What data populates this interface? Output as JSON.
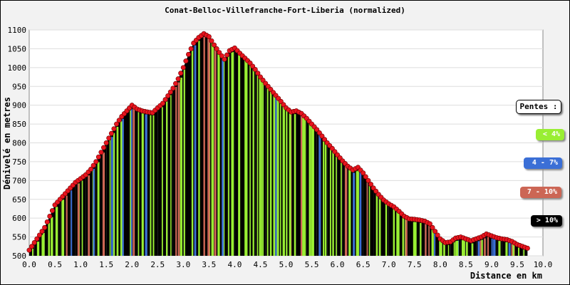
{
  "chart_data": {
    "type": "area",
    "title": "Conat-Belloc-Villefranche-Fort-Liberia (normalized)",
    "xlabel": "Distance en km",
    "ylabel": "Dénivelé en metres",
    "xlim": [
      0,
      10
    ],
    "ylim": [
      500,
      1100
    ],
    "x_ticks": [
      "0.0",
      "0.5",
      "1.0",
      "1.5",
      "2.0",
      "2.5",
      "3.0",
      "3.5",
      "4.0",
      "4.5",
      "5.0",
      "5.5",
      "6.0",
      "6.5",
      "7.0",
      "7.5",
      "8.0",
      "8.5",
      "9.0",
      "9.5",
      "10.0"
    ],
    "y_ticks": [
      "500",
      "550",
      "600",
      "650",
      "700",
      "750",
      "800",
      "850",
      "900",
      "950",
      "1000",
      "1050",
      "1100"
    ],
    "grid": "horizontal",
    "legend_placement": "right",
    "x": [
      0.0,
      0.1,
      0.2,
      0.3,
      0.4,
      0.5,
      0.6,
      0.7,
      0.8,
      0.9,
      1.0,
      1.1,
      1.2,
      1.3,
      1.4,
      1.5,
      1.6,
      1.7,
      1.8,
      1.9,
      2.0,
      2.1,
      2.2,
      2.3,
      2.4,
      2.5,
      2.6,
      2.7,
      2.8,
      2.9,
      3.0,
      3.1,
      3.2,
      3.3,
      3.4,
      3.5,
      3.6,
      3.7,
      3.8,
      3.9,
      4.0,
      4.1,
      4.2,
      4.3,
      4.4,
      4.5,
      4.6,
      4.7,
      4.8,
      4.9,
      5.0,
      5.1,
      5.2,
      5.3,
      5.4,
      5.5,
      5.6,
      5.7,
      5.8,
      5.9,
      6.0,
      6.1,
      6.2,
      6.3,
      6.4,
      6.5,
      6.6,
      6.7,
      6.8,
      6.9,
      7.0,
      7.1,
      7.2,
      7.3,
      7.4,
      7.5,
      7.6,
      7.7,
      7.8,
      7.9,
      8.0,
      8.1,
      8.2,
      8.3,
      8.4,
      8.5,
      8.6,
      8.7,
      8.8,
      8.9,
      9.0,
      9.1,
      9.2,
      9.3,
      9.4,
      9.5,
      9.6,
      9.7
    ],
    "y": [
      515,
      535,
      555,
      575,
      605,
      635,
      650,
      665,
      680,
      695,
      705,
      715,
      730,
      750,
      775,
      800,
      825,
      850,
      870,
      885,
      900,
      890,
      885,
      882,
      880,
      893,
      905,
      925,
      945,
      970,
      1000,
      1035,
      1065,
      1080,
      1090,
      1082,
      1060,
      1040,
      1022,
      1045,
      1052,
      1038,
      1025,
      1012,
      995,
      975,
      958,
      942,
      926,
      910,
      893,
      882,
      885,
      878,
      865,
      850,
      835,
      818,
      800,
      785,
      768,
      752,
      738,
      728,
      735,
      720,
      700,
      680,
      663,
      648,
      638,
      630,
      618,
      605,
      598,
      597,
      595,
      592,
      585,
      565,
      545,
      535,
      537,
      547,
      550,
      545,
      540,
      545,
      550,
      558,
      553,
      548,
      545,
      543,
      538,
      530,
      525,
      520
    ],
    "series": [
      {
        "name": "< 4%",
        "color": "#99ee33"
      },
      {
        "name": "4 - 7%",
        "color": "#3b6fd6"
      },
      {
        "name": "7 - 10%",
        "color": "#cc6655"
      },
      {
        "name": "> 10%",
        "color": "#000000"
      }
    ]
  },
  "legend": {
    "title": "Pentes :",
    "items": [
      {
        "label": "< 4%",
        "color": "#99ee33"
      },
      {
        "label": "4 - 7%",
        "color": "#3b6fd6"
      },
      {
        "label": "7 - 10%",
        "color": "#cc6655"
      },
      {
        "label": "> 10%",
        "color": "#000000"
      }
    ]
  }
}
